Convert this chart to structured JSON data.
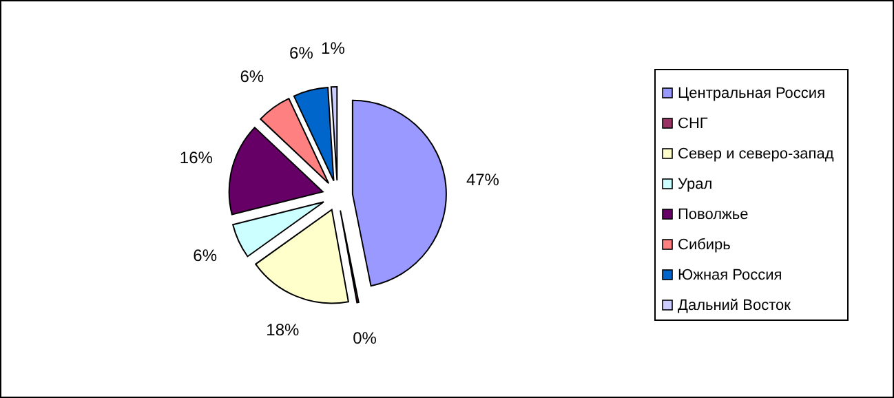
{
  "chart_data": {
    "type": "pie",
    "categories": [
      "Центральная Россия",
      "СНГ",
      "Север и северо-запад",
      "Урал",
      "Поволжье",
      "Сибирь",
      "Южная Россия",
      "Дальний Восток"
    ],
    "values": [
      47,
      0.3,
      18,
      6,
      16,
      6,
      6,
      1
    ],
    "value_labels": [
      "47%",
      "0%",
      "18%",
      "6%",
      "16%",
      "6%",
      "6%",
      "1%"
    ],
    "colors": [
      "#9999ff",
      "#993366",
      "#ffffcc",
      "#ccffff",
      "#660066",
      "#ff8080",
      "#0066cc",
      "#ccccff"
    ],
    "legend": "right"
  }
}
